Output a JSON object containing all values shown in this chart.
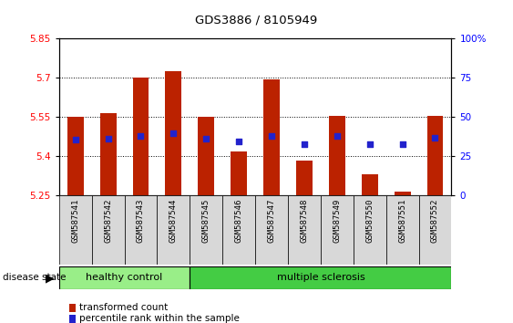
{
  "title": "GDS3886 / 8105949",
  "samples": [
    "GSM587541",
    "GSM587542",
    "GSM587543",
    "GSM587544",
    "GSM587545",
    "GSM587546",
    "GSM587547",
    "GSM587548",
    "GSM587549",
    "GSM587550",
    "GSM587551",
    "GSM587552"
  ],
  "bar_base": 5.25,
  "bar_tops": [
    5.55,
    5.565,
    5.7,
    5.725,
    5.55,
    5.42,
    5.695,
    5.385,
    5.555,
    5.33,
    5.265,
    5.555
  ],
  "blue_dot_values": [
    5.463,
    5.468,
    5.478,
    5.488,
    5.468,
    5.458,
    5.478,
    5.448,
    5.478,
    5.448,
    5.445,
    5.47
  ],
  "ylim_left": [
    5.25,
    5.85
  ],
  "ylim_right": [
    0,
    100
  ],
  "yticks_left": [
    5.25,
    5.4,
    5.55,
    5.7,
    5.85
  ],
  "ytick_labels_left": [
    "5.25",
    "5.4",
    "5.55",
    "5.7",
    "5.85"
  ],
  "yticks_right": [
    0,
    25,
    50,
    75,
    100
  ],
  "ytick_labels_right": [
    "0",
    "25",
    "50",
    "75",
    "100%"
  ],
  "bar_color": "#bb2200",
  "dot_color": "#2222cc",
  "n_healthy": 4,
  "n_ms": 8,
  "group_color_healthy": "#99ee88",
  "group_color_ms": "#44cc44",
  "label_healthy": "healthy control",
  "label_ms": "multiple sclerosis",
  "legend_bar_label": "transformed count",
  "legend_dot_label": "percentile rank within the sample",
  "xlabel": "disease state"
}
